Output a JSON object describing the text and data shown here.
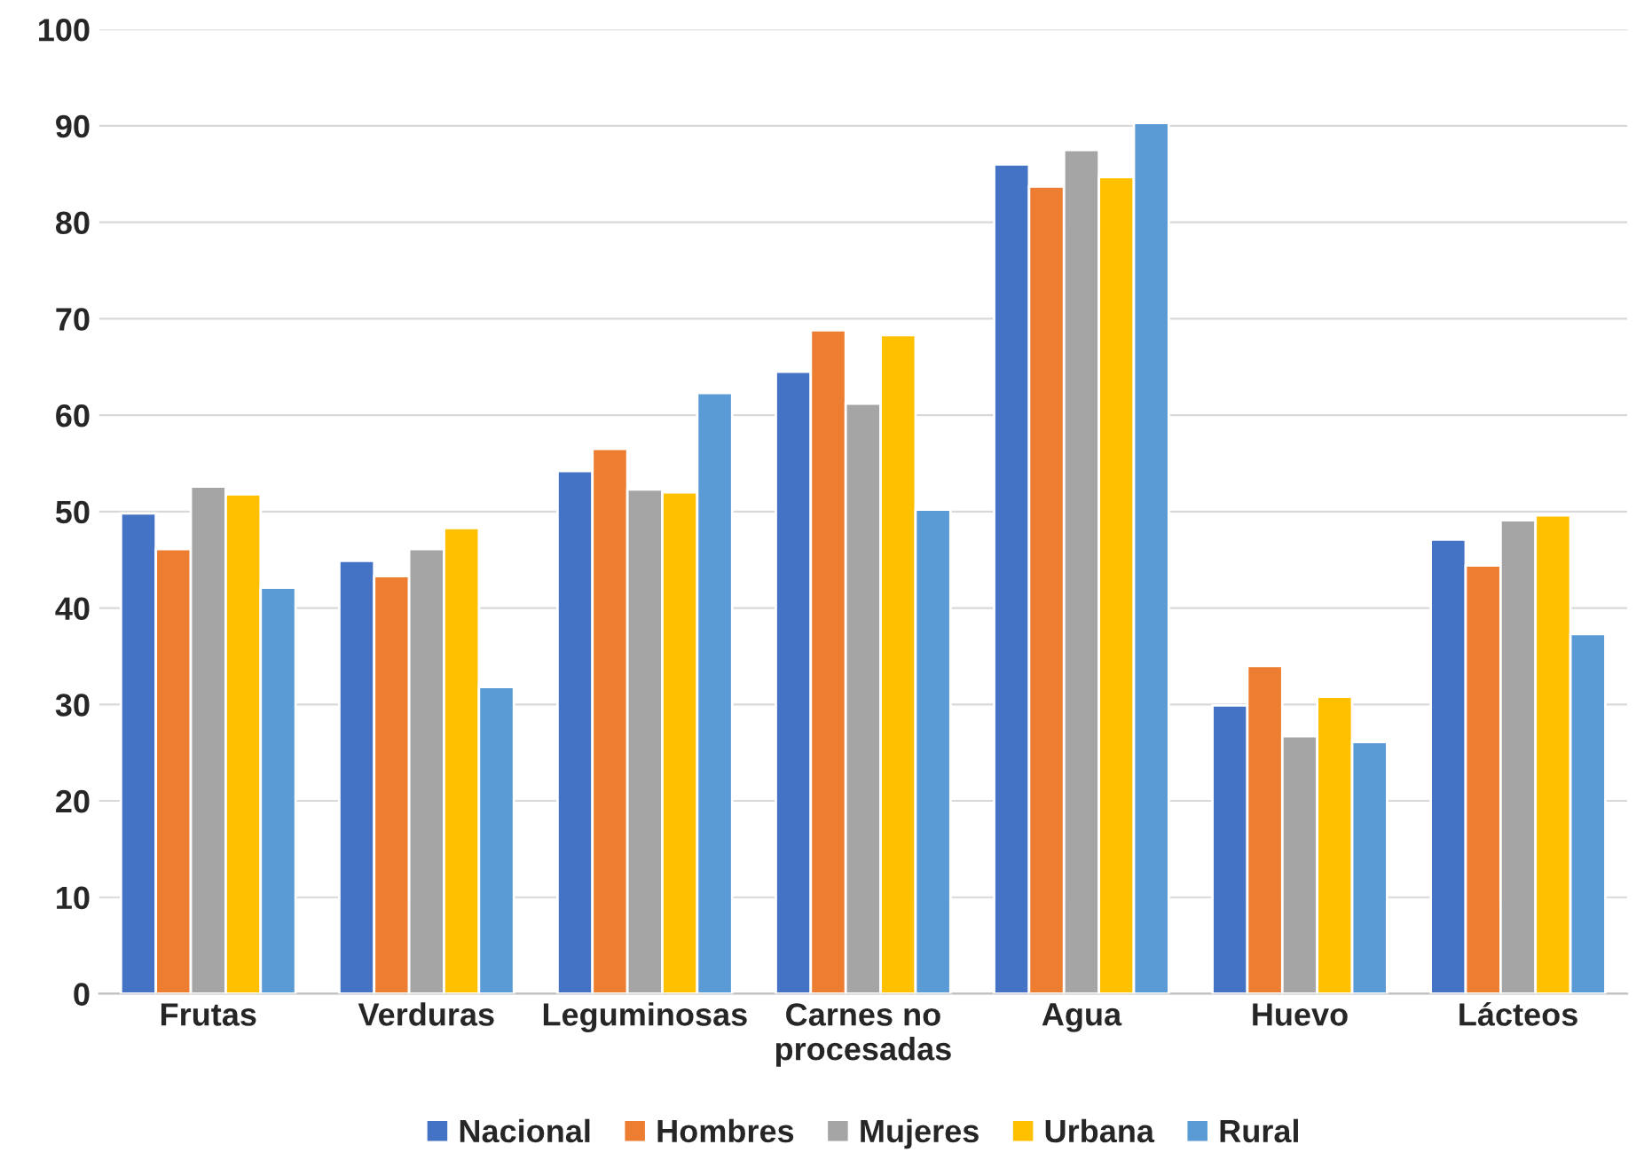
{
  "chart_data": {
    "type": "bar",
    "categories": [
      "Frutas",
      "Verduras",
      "Leguminosas",
      "Carnes no\nprocesadas",
      "Agua",
      "Huevo",
      "Lácteos"
    ],
    "series": [
      {
        "name": "Nacional",
        "color": "#4472c4",
        "values": [
          49.8,
          44.9,
          54.2,
          64.5,
          86.0,
          29.9,
          47.1
        ]
      },
      {
        "name": "Hombres",
        "color": "#ed7d31",
        "values": [
          46.1,
          43.3,
          56.5,
          68.8,
          83.7,
          34.0,
          44.4
        ]
      },
      {
        "name": "Mujeres",
        "color": "#a5a5a5",
        "values": [
          52.6,
          46.1,
          52.3,
          61.2,
          87.5,
          26.7,
          49.1
        ]
      },
      {
        "name": "Urbana",
        "color": "#ffc000",
        "values": [
          51.8,
          48.3,
          52.0,
          68.3,
          84.7,
          30.8,
          49.6
        ]
      },
      {
        "name": "Rural",
        "color": "#5b9bd5",
        "values": [
          42.1,
          31.8,
          62.3,
          50.2,
          90.3,
          26.1,
          37.3
        ]
      }
    ],
    "ylim": [
      0,
      100
    ],
    "yticks": [
      0,
      10,
      20,
      30,
      40,
      50,
      60,
      70,
      80,
      90,
      100
    ],
    "grid": "y",
    "legend": "bottom"
  }
}
